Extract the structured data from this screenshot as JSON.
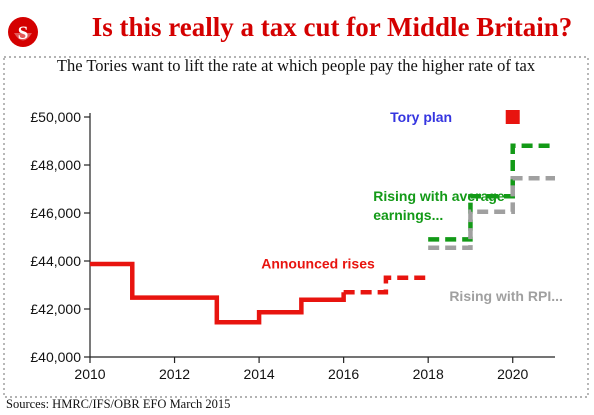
{
  "header": {
    "logo_letter": "S",
    "title": "Is this really a tax cut for Middle Britain?",
    "subtitle": "The Tories want to lift the rate at which people pay the higher rate of tax"
  },
  "footer": {
    "source": "Sources: HMRC/IFS/OBR EFO March 2015"
  },
  "colors": {
    "brand": "#d40000",
    "announced": "#e8140f",
    "earnings": "#139a17",
    "rpi": "#a0a0a0",
    "tory": "#3535e0"
  },
  "chart_data": {
    "type": "line",
    "title": "Is this really a tax cut for Middle Britain?",
    "subtitle": "The Tories want to lift the rate at which people pay the higher rate of tax",
    "xlabel": "",
    "ylabel": "",
    "xlim": [
      2010,
      2021
    ],
    "ylim": [
      40000,
      50000
    ],
    "x_ticks": [
      2010,
      2012,
      2014,
      2016,
      2018,
      2020
    ],
    "x_tick_labels": [
      "2010",
      "2012",
      "2014",
      "2016",
      "2018",
      "2020"
    ],
    "y_ticks": [
      40000,
      42000,
      44000,
      46000,
      48000,
      50000
    ],
    "y_tick_labels": [
      "£40,000",
      "£42,000",
      "£44,000",
      "£46,000",
      "£48,000",
      "£50,000"
    ],
    "grid": false,
    "series": [
      {
        "name": "Announced rises",
        "color": "#e8140f",
        "style": "step-solid",
        "x": [
          2010,
          2011,
          2013,
          2014,
          2015,
          2016
        ],
        "y": [
          43875,
          42475,
          41450,
          41865,
          42385,
          42700
        ]
      },
      {
        "name": "Announced rises",
        "color": "#e8140f",
        "style": "step-dashed",
        "x": [
          2016,
          2017,
          2018
        ],
        "y": [
          42700,
          43300,
          43300
        ]
      },
      {
        "name": "Rising with average earnings...",
        "color": "#139a17",
        "style": "step-dashed",
        "x": [
          2018,
          2019,
          2020,
          2021
        ],
        "y": [
          44900,
          46700,
          48800,
          48800
        ]
      },
      {
        "name": "Rising with RPI...",
        "color": "#a0a0a0",
        "style": "step-dashed",
        "x": [
          2018,
          2019,
          2020,
          2021
        ],
        "y": [
          44550,
          46050,
          47450,
          47450
        ]
      }
    ],
    "points": [
      {
        "name": "Tory plan",
        "x": 2020,
        "y": 50000,
        "color": "#e8140f"
      }
    ],
    "annotations": [
      {
        "lines": [
          "Tory plan"
        ],
        "color": "#3535e0",
        "x": 2017.1,
        "y": 50000
      },
      {
        "lines": [
          "Rising with average",
          "earnings..."
        ],
        "color": "#139a17",
        "x": 2016.7,
        "y": 46700
      },
      {
        "lines": [
          "Announced rises"
        ],
        "color": "#e8140f",
        "x": 2014.05,
        "y": 43900
      },
      {
        "lines": [
          "Rising with RPI..."
        ],
        "color": "#a0a0a0",
        "x": 2018.5,
        "y": 42550
      }
    ]
  }
}
